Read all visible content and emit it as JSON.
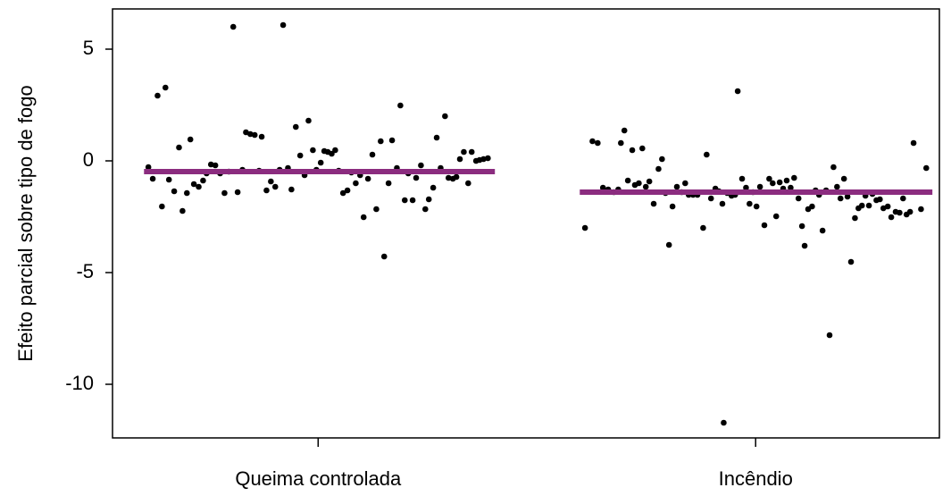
{
  "chart_data": {
    "type": "scatter",
    "ylabel": "Efeito parcial sobre tipo de fogo",
    "xlim": [
      0.53,
      2.42
    ],
    "xticks": [
      {
        "value": 1,
        "label": "Queima controlada"
      },
      {
        "value": 2,
        "label": "Incêndio"
      }
    ],
    "ylim": [
      -12.4,
      6.8
    ],
    "yticks": [
      -10,
      -5,
      0,
      5
    ],
    "grid": false,
    "series": [
      {
        "color": "#000000",
        "x": [
          0.612,
          0.622,
          0.633,
          0.643,
          0.651,
          0.659,
          0.671,
          0.682,
          0.69,
          0.7,
          0.708,
          0.716,
          0.727,
          0.737,
          0.745,
          0.755,
          0.765,
          0.776,
          0.786,
          0.796,
          0.806,
          0.816,
          0.827,
          0.835,
          0.845,
          0.855,
          0.865,
          0.871,
          0.882,
          0.892,
          0.902,
          0.912,
          0.92,
          0.931,
          0.939,
          0.949,
          0.959,
          0.969,
          0.978,
          0.988,
          0.996,
          1.006,
          1.014,
          1.022,
          1.031,
          1.039,
          1.047,
          1.057,
          1.067,
          1.076,
          1.086,
          1.096,
          1.104,
          1.114,
          1.124,
          1.133,
          1.143,
          1.151,
          1.161,
          1.169,
          1.18,
          1.188,
          1.198,
          1.206,
          1.216,
          1.224,
          1.235,
          1.245,
          1.253,
          1.263,
          1.271,
          1.28,
          1.29,
          1.298,
          1.308,
          1.316,
          1.324,
          1.333,
          1.343,
          1.351,
          1.361,
          1.369,
          1.378,
          1.388
        ],
        "values": [
          -0.28,
          -0.8,
          2.92,
          -2.04,
          3.28,
          -0.84,
          -1.36,
          0.6,
          -2.24,
          -1.44,
          0.96,
          -1.04,
          -1.16,
          -0.88,
          -0.56,
          -0.16,
          -0.2,
          -0.56,
          -1.44,
          -0.48,
          6.0,
          -1.4,
          -0.4,
          1.28,
          1.2,
          1.16,
          -0.44,
          1.08,
          -1.32,
          -0.92,
          -1.16,
          -0.4,
          6.08,
          -0.32,
          -1.28,
          1.52,
          0.24,
          -0.64,
          1.8,
          0.48,
          -0.4,
          -0.08,
          0.44,
          0.4,
          0.32,
          0.48,
          -0.44,
          -1.44,
          -1.32,
          -0.52,
          -1.0,
          -0.64,
          -2.52,
          -0.8,
          0.28,
          -2.16,
          0.88,
          -4.28,
          -1.0,
          0.92,
          -0.32,
          2.48,
          -1.76,
          -0.56,
          -1.76,
          -0.76,
          -0.2,
          -2.16,
          -1.72,
          -1.2,
          1.04,
          -0.32,
          2.0,
          -0.76,
          -0.8,
          -0.72,
          0.08,
          0.4,
          -1.0,
          0.4,
          0.0,
          0.04,
          0.08,
          0.12
        ]
      },
      {
        "color": "#000000",
        "x": [
          1.61,
          1.627,
          1.639,
          1.651,
          1.663,
          1.676,
          1.686,
          1.692,
          1.7,
          1.708,
          1.718,
          1.724,
          1.733,
          1.741,
          1.749,
          1.757,
          1.767,
          1.778,
          1.786,
          1.794,
          1.802,
          1.81,
          1.82,
          1.831,
          1.839,
          1.847,
          1.857,
          1.867,
          1.88,
          1.888,
          1.898,
          1.908,
          1.916,
          1.924,
          1.927,
          1.935,
          1.945,
          1.953,
          1.959,
          1.969,
          1.978,
          1.986,
          1.994,
          2.002,
          2.01,
          2.02,
          2.031,
          2.039,
          2.047,
          2.055,
          2.063,
          2.071,
          2.08,
          2.088,
          2.098,
          2.106,
          2.112,
          2.12,
          2.129,
          2.137,
          2.145,
          2.153,
          2.161,
          2.169,
          2.178,
          2.186,
          2.194,
          2.202,
          2.21,
          2.218,
          2.227,
          2.235,
          2.243,
          2.251,
          2.259,
          2.267,
          2.276,
          2.284,
          2.292,
          2.302,
          2.31,
          2.32,
          2.329,
          2.337,
          2.345,
          2.353,
          2.361,
          2.378,
          2.39
        ],
        "values": [
          -3.0,
          0.88,
          0.8,
          -1.2,
          -1.28,
          -1.4,
          -1.28,
          0.8,
          1.36,
          -0.88,
          0.48,
          -1.08,
          -1.0,
          0.56,
          -1.16,
          -0.92,
          -1.92,
          -0.36,
          0.08,
          -1.44,
          -3.76,
          -2.04,
          -1.16,
          -1.4,
          -1.0,
          -1.52,
          -1.52,
          -1.52,
          -3.0,
          0.28,
          -1.68,
          -1.24,
          -1.36,
          -1.92,
          -11.72,
          -1.44,
          -1.56,
          -1.52,
          3.12,
          -0.8,
          -1.2,
          -1.92,
          -1.4,
          -2.04,
          -1.16,
          -2.88,
          -0.8,
          -1.0,
          -2.48,
          -0.96,
          -1.24,
          -0.88,
          -1.2,
          -0.76,
          -1.68,
          -2.92,
          -3.8,
          -2.16,
          -2.04,
          -1.32,
          -1.52,
          -3.12,
          -1.32,
          -7.8,
          -0.28,
          -1.16,
          -1.68,
          -0.8,
          -1.6,
          -4.52,
          -2.56,
          -2.12,
          -2.0,
          -1.56,
          -2.0,
          -1.48,
          -1.76,
          -1.72,
          -2.12,
          -2.04,
          -2.52,
          -2.28,
          -2.32,
          -1.68,
          -2.4,
          -2.28,
          0.8,
          -2.16,
          -0.32
        ]
      }
    ],
    "fit_color": "#8b2c7f",
    "fits": [
      {
        "x": [
          0.602,
          1.404
        ],
        "values": [
          -0.48,
          -0.48
        ]
      },
      {
        "x": [
          1.598,
          2.404
        ],
        "values": [
          -1.4,
          -1.4
        ]
      }
    ]
  }
}
